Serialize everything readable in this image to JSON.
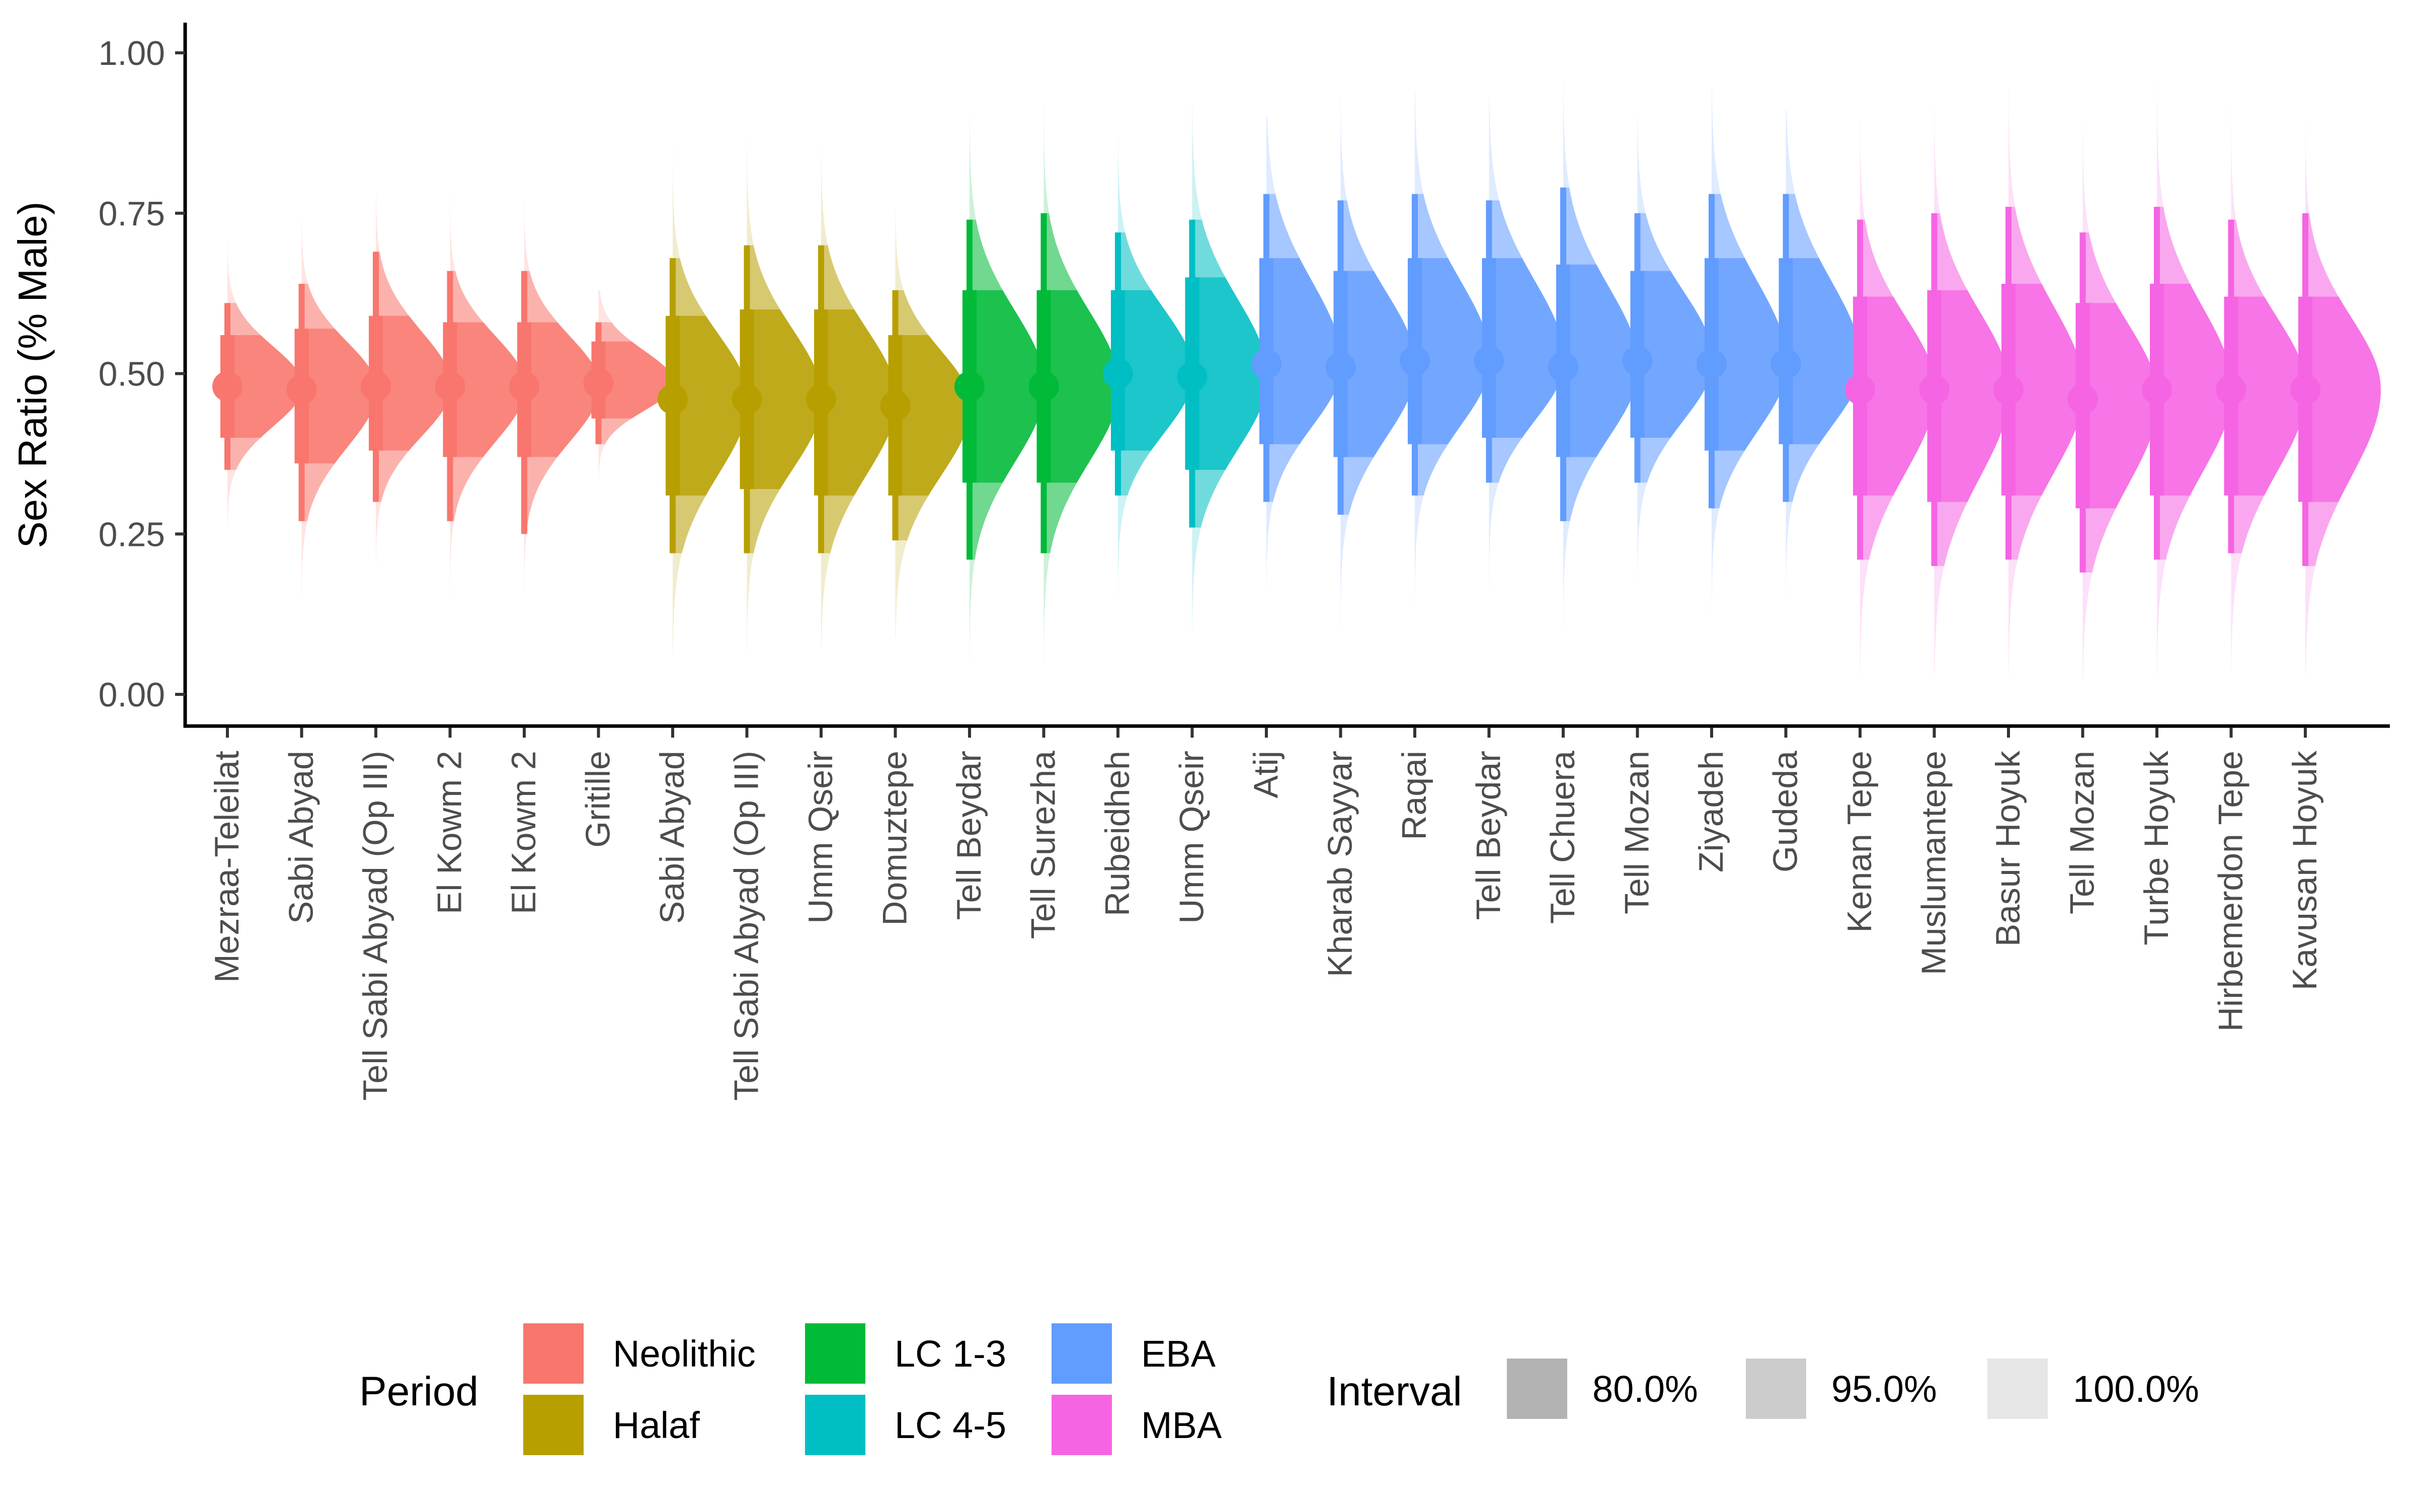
{
  "chart_data": {
    "type": "violin",
    "ylabel": "Sex Ratio (% Male)",
    "xlabel": "",
    "ylim": [
      -0.05,
      1.04
    ],
    "y_ticks": [
      "0.00",
      "0.25",
      "0.50",
      "0.75",
      "1.00"
    ],
    "y_tick_values": [
      0,
      0.25,
      0.5,
      0.75,
      1.0
    ],
    "grid": false,
    "legend": {
      "placement": "bottom",
      "period_title": "Period",
      "interval_title": "Interval",
      "periods": [
        {
          "name": "Neolithic",
          "color": "#F8766D"
        },
        {
          "name": "Halaf",
          "color": "#B79F00"
        },
        {
          "name": "LC 1-3",
          "color": "#00BA38"
        },
        {
          "name": "LC 4-5",
          "color": "#00BFC4"
        },
        {
          "name": "EBA",
          "color": "#619CFF"
        },
        {
          "name": "MBA",
          "color": "#F564E3"
        }
      ],
      "intervals": [
        {
          "name": "80.0%",
          "color": "#b3b3b3"
        },
        {
          "name": "95.0%",
          "color": "#cccccc"
        },
        {
          "name": "100.0%",
          "color": "#e6e6e6"
        }
      ]
    },
    "sites": [
      {
        "name": "Mezraa-Teleilat",
        "period": "Neolithic",
        "median": 0.48,
        "i80": [
          0.4,
          0.56
        ],
        "i95": [
          0.35,
          0.61
        ],
        "i100": [
          0.26,
          0.72
        ]
      },
      {
        "name": "Sabi Abyad",
        "period": "Neolithic",
        "median": 0.475,
        "i80": [
          0.36,
          0.57
        ],
        "i95": [
          0.27,
          0.64
        ],
        "i100": [
          0.08,
          0.86
        ]
      },
      {
        "name": "Tell Sabi Abyad (Op III)",
        "period": "Neolithic",
        "median": 0.48,
        "i80": [
          0.38,
          0.59
        ],
        "i95": [
          0.3,
          0.69
        ],
        "i100": [
          0.12,
          0.88
        ]
      },
      {
        "name": "El Kowm 2",
        "period": "Neolithic",
        "median": 0.48,
        "i80": [
          0.37,
          0.58
        ],
        "i95": [
          0.27,
          0.66
        ],
        "i100": [
          0.09,
          0.88
        ]
      },
      {
        "name": "El Kowm 2",
        "period": "Neolithic",
        "median": 0.48,
        "i80": [
          0.37,
          0.58
        ],
        "i95": [
          0.25,
          0.66
        ],
        "i100": [
          0.11,
          0.9
        ]
      },
      {
        "name": "Gritille",
        "period": "Neolithic",
        "median": 0.485,
        "i80": [
          0.43,
          0.55
        ],
        "i95": [
          0.39,
          0.58
        ],
        "i100": [
          0.33,
          0.63
        ]
      },
      {
        "name": "Sabi Abyad",
        "period": "Halaf",
        "median": 0.46,
        "i80": [
          0.31,
          0.59
        ],
        "i95": [
          0.22,
          0.68
        ],
        "i100": [
          0.06,
          0.86
        ]
      },
      {
        "name": "Tell Sabi Abyad (Op III)",
        "period": "Halaf",
        "median": 0.46,
        "i80": [
          0.32,
          0.6
        ],
        "i95": [
          0.22,
          0.7
        ],
        "i100": [
          0.06,
          0.89
        ]
      },
      {
        "name": "Umm Qseir",
        "period": "Halaf",
        "median": 0.46,
        "i80": [
          0.31,
          0.6
        ],
        "i95": [
          0.22,
          0.7
        ],
        "i100": [
          0.07,
          0.86
        ]
      },
      {
        "name": "Domuztepe",
        "period": "Halaf",
        "median": 0.45,
        "i80": [
          0.31,
          0.56
        ],
        "i95": [
          0.24,
          0.63
        ],
        "i100": [
          0.09,
          0.8
        ]
      },
      {
        "name": "Tell Beydar",
        "period": "LC 1-3",
        "median": 0.48,
        "i80": [
          0.33,
          0.63
        ],
        "i95": [
          0.21,
          0.74
        ],
        "i100": [
          0.05,
          0.93
        ]
      },
      {
        "name": "Tell Surezha",
        "period": "LC 1-3",
        "median": 0.48,
        "i80": [
          0.33,
          0.63
        ],
        "i95": [
          0.22,
          0.75
        ],
        "i100": [
          0.05,
          0.96
        ]
      },
      {
        "name": "Rubeidheh",
        "period": "LC 4-5",
        "median": 0.5,
        "i80": [
          0.38,
          0.63
        ],
        "i95": [
          0.31,
          0.72
        ],
        "i100": [
          0.14,
          0.87
        ]
      },
      {
        "name": "Umm Qseir",
        "period": "LC 4-5",
        "median": 0.495,
        "i80": [
          0.35,
          0.65
        ],
        "i95": [
          0.26,
          0.74
        ],
        "i100": [
          0.09,
          0.92
        ]
      },
      {
        "name": "Atij",
        "period": "EBA",
        "median": 0.515,
        "i80": [
          0.39,
          0.68
        ],
        "i95": [
          0.3,
          0.78
        ],
        "i100": [
          0.1,
          0.9
        ]
      },
      {
        "name": "Kharab Sayyar",
        "period": "EBA",
        "median": 0.51,
        "i80": [
          0.37,
          0.66
        ],
        "i95": [
          0.28,
          0.77
        ],
        "i100": [
          0.08,
          0.93
        ]
      },
      {
        "name": "Raqai",
        "period": "EBA",
        "median": 0.52,
        "i80": [
          0.39,
          0.68
        ],
        "i95": [
          0.31,
          0.78
        ],
        "i100": [
          0.1,
          0.94
        ]
      },
      {
        "name": "Tell Beydar",
        "period": "EBA",
        "median": 0.52,
        "i80": [
          0.4,
          0.68
        ],
        "i95": [
          0.33,
          0.77
        ],
        "i100": [
          0.11,
          0.93
        ]
      },
      {
        "name": "Tell Chuera",
        "period": "EBA",
        "median": 0.51,
        "i80": [
          0.37,
          0.67
        ],
        "i95": [
          0.27,
          0.79
        ],
        "i100": [
          0.06,
          0.96
        ]
      },
      {
        "name": "Tell Mozan",
        "period": "EBA",
        "median": 0.52,
        "i80": [
          0.4,
          0.66
        ],
        "i95": [
          0.33,
          0.75
        ],
        "i100": [
          0.1,
          0.91
        ]
      },
      {
        "name": "Ziyadeh",
        "period": "EBA",
        "median": 0.515,
        "i80": [
          0.38,
          0.68
        ],
        "i95": [
          0.29,
          0.78
        ],
        "i100": [
          0.08,
          0.95
        ]
      },
      {
        "name": "Gudeda",
        "period": "EBA",
        "median": 0.515,
        "i80": [
          0.39,
          0.68
        ],
        "i95": [
          0.3,
          0.78
        ],
        "i100": [
          0.12,
          0.91
        ]
      },
      {
        "name": "Kenan Tepe",
        "period": "MBA",
        "median": 0.475,
        "i80": [
          0.31,
          0.62
        ],
        "i95": [
          0.21,
          0.74
        ],
        "i100": [
          0.03,
          0.94
        ]
      },
      {
        "name": "Muslumantepe",
        "period": "MBA",
        "median": 0.475,
        "i80": [
          0.3,
          0.63
        ],
        "i95": [
          0.2,
          0.75
        ],
        "i100": [
          0.03,
          0.95
        ]
      },
      {
        "name": "Basur Hoyuk",
        "period": "MBA",
        "median": 0.475,
        "i80": [
          0.31,
          0.64
        ],
        "i95": [
          0.21,
          0.76
        ],
        "i100": [
          0.03,
          0.96
        ]
      },
      {
        "name": "Tell Mozan",
        "period": "MBA",
        "median": 0.46,
        "i80": [
          0.29,
          0.61
        ],
        "i95": [
          0.19,
          0.72
        ],
        "i100": [
          0.02,
          0.92
        ]
      },
      {
        "name": "Turbe Hoyuk",
        "period": "MBA",
        "median": 0.475,
        "i80": [
          0.31,
          0.64
        ],
        "i95": [
          0.21,
          0.76
        ],
        "i100": [
          0.03,
          0.96
        ]
      },
      {
        "name": "Hirbemerdon Tepe",
        "period": "MBA",
        "median": 0.475,
        "i80": [
          0.31,
          0.62
        ],
        "i95": [
          0.22,
          0.74
        ],
        "i100": [
          0.03,
          0.95
        ]
      },
      {
        "name": "Kavusan Hoyuk",
        "period": "MBA",
        "median": 0.475,
        "i80": [
          0.3,
          0.62
        ],
        "i95": [
          0.2,
          0.75
        ],
        "i100": [
          0.03,
          0.94
        ]
      }
    ]
  }
}
